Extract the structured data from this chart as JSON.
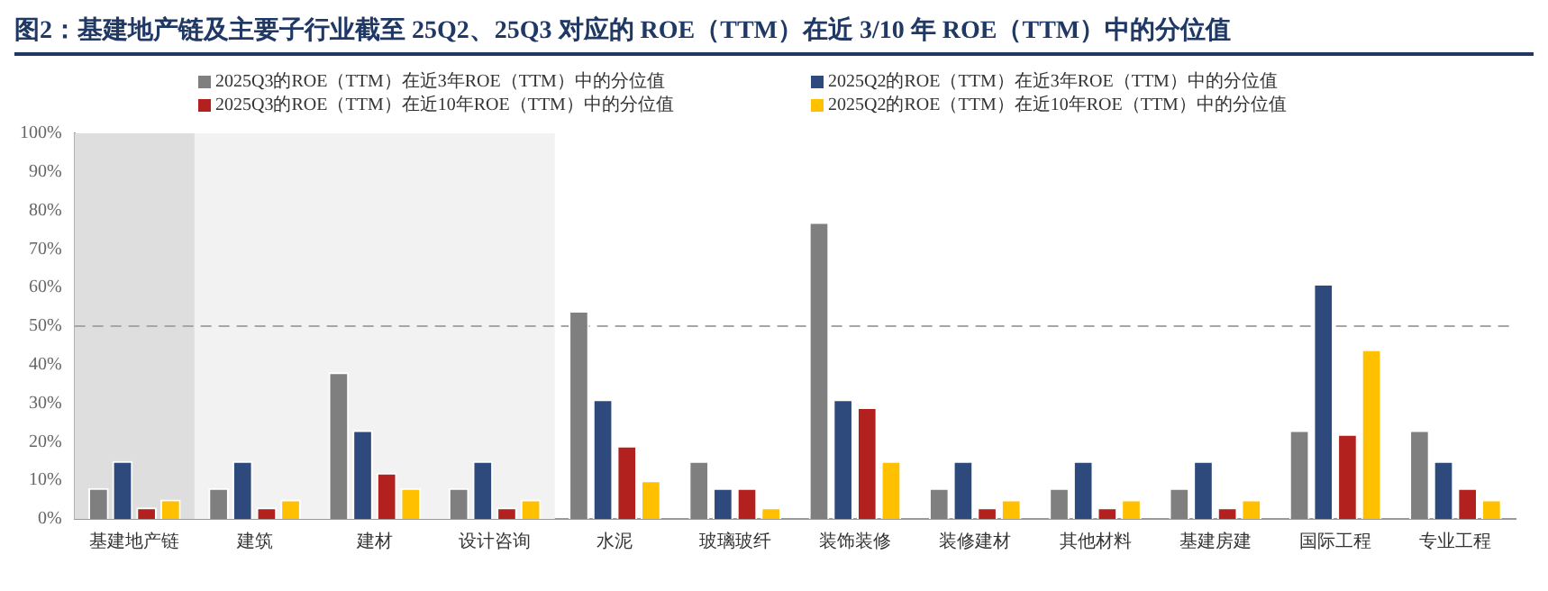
{
  "chart_data": {
    "type": "bar",
    "title": "图2：基建地产链及主要子行业截至 25Q2、25Q3 对应的 ROE（TTM）在近 3/10 年 ROE（TTM）中的分位值",
    "categories": [
      "基建地产链",
      "建筑",
      "建材",
      "设计咨询",
      "水泥",
      "玻璃玻纤",
      "装饰装修",
      "装修建材",
      "其他材料",
      "基建房建",
      "国际工程",
      "专业工程"
    ],
    "series": [
      {
        "name": "2025Q3的ROE（TTM）在近3年ROE（TTM）中的分位值",
        "color": "#7f7f7f",
        "values": [
          8,
          8,
          38,
          8,
          54,
          15,
          77,
          8,
          8,
          8,
          23,
          23
        ]
      },
      {
        "name": "2025Q2的ROE（TTM）在近3年ROE（TTM）中的分位值",
        "color": "#2e4a7d",
        "values": [
          15,
          15,
          23,
          15,
          31,
          8,
          31,
          15,
          15,
          15,
          61,
          15
        ]
      },
      {
        "name": "2025Q3的ROE（TTM）在近10年ROE（TTM）中的分位值",
        "color": "#b3211f",
        "values": [
          3,
          3,
          12,
          3,
          19,
          8,
          29,
          3,
          3,
          3,
          22,
          8
        ]
      },
      {
        "name": "2025Q2的ROE（TTM）在近10年ROE（TTM）中的分位值",
        "color": "#ffc000",
        "values": [
          5,
          5,
          8,
          5,
          10,
          3,
          15,
          5,
          5,
          5,
          44,
          5
        ]
      }
    ],
    "ylim": [
      0,
      100
    ],
    "yticks": [
      {
        "value": 0,
        "label": "0%"
      },
      {
        "value": 10,
        "label": "10%"
      },
      {
        "value": 20,
        "label": "20%"
      },
      {
        "value": 30,
        "label": "30%"
      },
      {
        "value": 40,
        "label": "40%"
      },
      {
        "value": 50,
        "label": "50%"
      },
      {
        "value": 60,
        "label": "60%"
      },
      {
        "value": 70,
        "label": "70%"
      },
      {
        "value": 80,
        "label": "80%"
      },
      {
        "value": 90,
        "label": "90%"
      },
      {
        "value": 100,
        "label": "100%"
      }
    ],
    "ref_lines": [
      {
        "axis": "y",
        "value": 50,
        "color": "#a6a6a6",
        "line_style": "dashed"
      }
    ],
    "bands": [
      {
        "axis": "x",
        "from": "基建地产链",
        "to": "基建地产链",
        "color": "#dedede"
      },
      {
        "axis": "x",
        "from": "建筑",
        "to": "设计咨询",
        "color": "#f2f2f2"
      }
    ],
    "grid": false,
    "legend": "top"
  }
}
